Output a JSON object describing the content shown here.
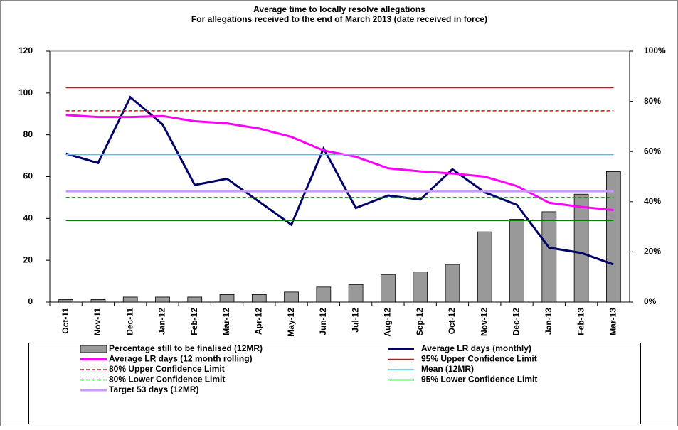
{
  "chart_data": {
    "type": "combo",
    "title": "Average time to locally resolve allegations",
    "subtitle": "For allegations received to the end of March 2013 (date received in force)",
    "categories": [
      "Oct-11",
      "Nov-11",
      "Dec-11",
      "Jan-12",
      "Feb-12",
      "Mar-12",
      "Apr-12",
      "May-12",
      "Jun-12",
      "Jul-12",
      "Aug-12",
      "Sep-12",
      "Oct-12",
      "Nov-12",
      "Dec-12",
      "Jan-13",
      "Feb-13",
      "Mar-13"
    ],
    "ylim": [
      0,
      120
    ],
    "yticks": [
      0,
      20,
      40,
      60,
      80,
      100,
      120
    ],
    "y2lim": [
      0,
      100
    ],
    "y2ticks": [
      {
        "value": 0,
        "label": "0%"
      },
      {
        "value": 20,
        "label": "20%"
      },
      {
        "value": 40,
        "label": "40%"
      },
      {
        "value": 60,
        "label": "60%"
      },
      {
        "value": 80,
        "label": "80%"
      },
      {
        "value": 100,
        "label": "100%"
      }
    ],
    "series": [
      {
        "name": "Percentage still to be finalised (12MR)",
        "type": "bar",
        "axis": "y2",
        "color": "#999999",
        "values": [
          1,
          1,
          2,
          2,
          2,
          3,
          3,
          4,
          6,
          7,
          11,
          12,
          15,
          28,
          33,
          36,
          43,
          52
        ]
      },
      {
        "name": "Average LR days (monthly)",
        "type": "line",
        "color": "#000066",
        "values": [
          71,
          66.5,
          98,
          85,
          56,
          59,
          48,
          37,
          73.5,
          45,
          51,
          49,
          63.5,
          52.5,
          46.5,
          26,
          23.5,
          18
        ]
      },
      {
        "name": "Average LR days (12 month rolling)",
        "type": "line",
        "color": "#ff00ff",
        "values": [
          89.5,
          88.5,
          88.5,
          89,
          86.5,
          85.5,
          83,
          79,
          72.5,
          69.5,
          64,
          62.5,
          61.5,
          60,
          55.5,
          47.5,
          45.5,
          44
        ]
      },
      {
        "name": "95% Upper Confidence Limit",
        "type": "hline",
        "color": "#ff0000",
        "value": 102.5
      },
      {
        "name": "80% Upper Confidence Limit",
        "type": "hline",
        "color": "#ff0000",
        "dash": true,
        "value": 91.5
      },
      {
        "name": "Mean (12MR)",
        "type": "hline",
        "color": "#33ccff",
        "value": 70.5
      },
      {
        "name": "80% Lower Confidence Limit",
        "type": "hline",
        "color": "#009900",
        "dash": true,
        "value": 50
      },
      {
        "name": "95% Lower Confidence Limit",
        "type": "hline",
        "color": "#008000",
        "value": 39
      },
      {
        "name": "Target 53 days (12MR)",
        "type": "hline",
        "color": "#cc99ff",
        "thick": true,
        "value": 53
      }
    ]
  }
}
